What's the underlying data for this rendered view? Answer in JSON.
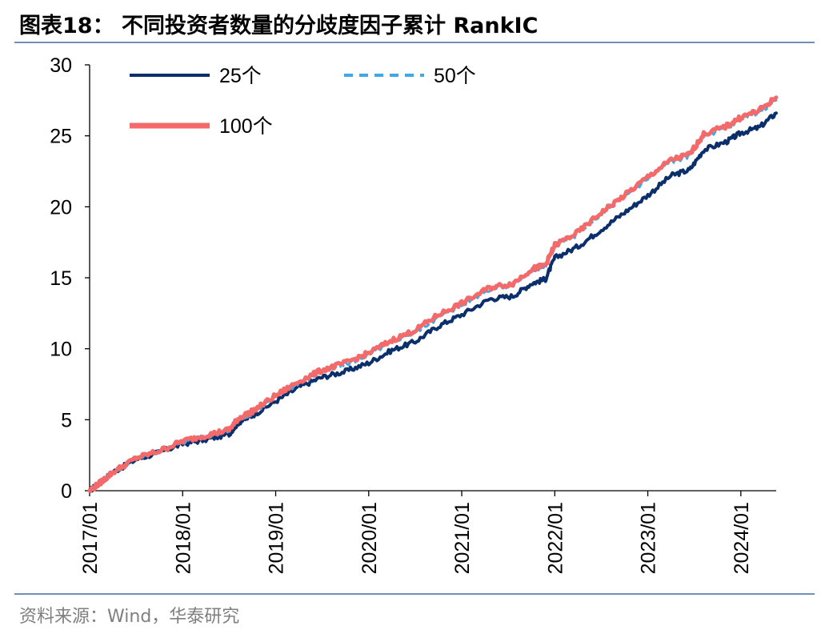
{
  "title": "图表18：  不同投资者数量的分歧度因子累计 RankIC",
  "source": "资料来源：Wind，华泰研究",
  "chart_data": {
    "type": "line",
    "ylim": [
      0,
      30
    ],
    "yticks": [
      0,
      5,
      10,
      15,
      20,
      25,
      30
    ],
    "ytick_labels": [
      "0",
      "5",
      "10",
      "15",
      "20",
      "25",
      "30"
    ],
    "xlim": [
      2017.0,
      2024.38
    ],
    "xticks": [
      2017,
      2018,
      2019,
      2020,
      2021,
      2022,
      2023,
      2024
    ],
    "xtick_labels": [
      "2017/01",
      "2018/01",
      "2019/01",
      "2020/01",
      "2021/01",
      "2022/01",
      "2023/01",
      "2024/01"
    ],
    "grid": false,
    "legend_position": "top-left",
    "series": [
      {
        "name": "25个",
        "color": "#0b2f6b",
        "style": "solid",
        "points": [
          [
            2017.0,
            0.0
          ],
          [
            2017.12,
            0.6
          ],
          [
            2017.25,
            1.3
          ],
          [
            2017.5,
            2.2
          ],
          [
            2017.75,
            2.7
          ],
          [
            2018.0,
            3.3
          ],
          [
            2018.25,
            3.6
          ],
          [
            2018.5,
            4.0
          ],
          [
            2018.6,
            4.8
          ],
          [
            2018.75,
            5.3
          ],
          [
            2019.0,
            6.3
          ],
          [
            2019.25,
            7.3
          ],
          [
            2019.5,
            8.0
          ],
          [
            2019.75,
            8.4
          ],
          [
            2020.0,
            9.0
          ],
          [
            2020.25,
            9.9
          ],
          [
            2020.5,
            10.5
          ],
          [
            2020.75,
            11.6
          ],
          [
            2021.0,
            12.4
          ],
          [
            2021.3,
            13.5
          ],
          [
            2021.55,
            13.7
          ],
          [
            2021.75,
            14.6
          ],
          [
            2021.9,
            14.9
          ],
          [
            2022.0,
            16.4
          ],
          [
            2022.25,
            17.2
          ],
          [
            2022.5,
            18.4
          ],
          [
            2022.75,
            19.6
          ],
          [
            2023.0,
            20.8
          ],
          [
            2023.25,
            22.2
          ],
          [
            2023.45,
            22.6
          ],
          [
            2023.6,
            24.0
          ],
          [
            2023.85,
            24.6
          ],
          [
            2024.0,
            25.2
          ],
          [
            2024.2,
            25.6
          ],
          [
            2024.38,
            26.6
          ]
        ]
      },
      {
        "name": "50个",
        "color": "#3fa9e6",
        "style": "dashed",
        "points": [
          [
            2017.0,
            0.0
          ],
          [
            2017.12,
            0.6
          ],
          [
            2017.25,
            1.3
          ],
          [
            2017.5,
            2.3
          ],
          [
            2017.75,
            2.8
          ],
          [
            2018.0,
            3.4
          ],
          [
            2018.25,
            3.8
          ],
          [
            2018.5,
            4.2
          ],
          [
            2018.6,
            5.0
          ],
          [
            2018.75,
            5.5
          ],
          [
            2019.0,
            6.6
          ],
          [
            2019.25,
            7.6
          ],
          [
            2019.5,
            8.4
          ],
          [
            2019.75,
            8.9
          ],
          [
            2020.0,
            9.6
          ],
          [
            2020.25,
            10.5
          ],
          [
            2020.5,
            11.2
          ],
          [
            2020.75,
            12.2
          ],
          [
            2021.0,
            13.1
          ],
          [
            2021.3,
            14.2
          ],
          [
            2021.55,
            14.5
          ],
          [
            2021.75,
            15.5
          ],
          [
            2021.9,
            15.8
          ],
          [
            2022.0,
            17.2
          ],
          [
            2022.25,
            18.1
          ],
          [
            2022.5,
            19.5
          ],
          [
            2022.75,
            20.7
          ],
          [
            2023.0,
            22.0
          ],
          [
            2023.25,
            23.2
          ],
          [
            2023.45,
            23.6
          ],
          [
            2023.6,
            25.0
          ],
          [
            2023.85,
            25.6
          ],
          [
            2024.0,
            26.2
          ],
          [
            2024.2,
            26.7
          ],
          [
            2024.38,
            27.5
          ]
        ]
      },
      {
        "name": "100个",
        "color": "#f46a6a",
        "style": "solid",
        "points": [
          [
            2017.0,
            0.0
          ],
          [
            2017.12,
            0.6
          ],
          [
            2017.25,
            1.3
          ],
          [
            2017.5,
            2.3
          ],
          [
            2017.75,
            2.8
          ],
          [
            2018.0,
            3.5
          ],
          [
            2018.25,
            3.9
          ],
          [
            2018.5,
            4.3
          ],
          [
            2018.6,
            5.1
          ],
          [
            2018.75,
            5.6
          ],
          [
            2019.0,
            6.7
          ],
          [
            2019.25,
            7.7
          ],
          [
            2019.5,
            8.5
          ],
          [
            2019.75,
            9.0
          ],
          [
            2020.0,
            9.7
          ],
          [
            2020.25,
            10.6
          ],
          [
            2020.5,
            11.3
          ],
          [
            2020.75,
            12.4
          ],
          [
            2021.0,
            13.2
          ],
          [
            2021.3,
            14.3
          ],
          [
            2021.55,
            14.6
          ],
          [
            2021.75,
            15.6
          ],
          [
            2021.9,
            15.9
          ],
          [
            2022.0,
            17.3
          ],
          [
            2022.25,
            18.2
          ],
          [
            2022.5,
            19.6
          ],
          [
            2022.75,
            20.8
          ],
          [
            2023.0,
            22.1
          ],
          [
            2023.25,
            23.3
          ],
          [
            2023.45,
            23.7
          ],
          [
            2023.6,
            25.1
          ],
          [
            2023.85,
            25.7
          ],
          [
            2024.0,
            26.3
          ],
          [
            2024.2,
            26.8
          ],
          [
            2024.38,
            27.7
          ]
        ]
      }
    ]
  }
}
